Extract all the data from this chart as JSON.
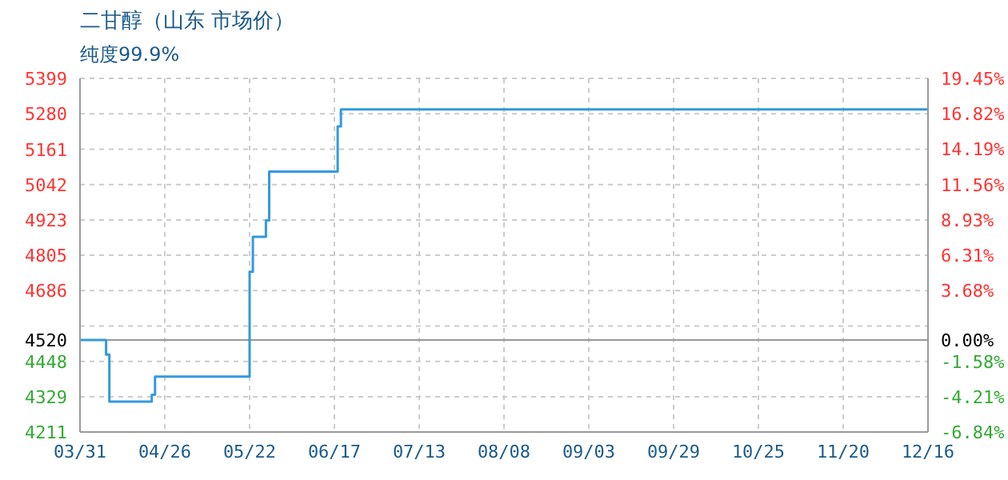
{
  "chart_data": {
    "type": "step",
    "title": "二甘醇（山东 市场价）",
    "subtitle": "纯度99.9%",
    "x": [
      "--03-31",
      "--04-08",
      "--04-09",
      "--04-22",
      "--04-23",
      "--05-22",
      "--05-23",
      "--05-27",
      "--05-28",
      "--06-18",
      "--06-19",
      "--12-16"
    ],
    "series": [
      {
        "color": "#3399dd",
        "values": [
          4520,
          4471,
          4313,
          4336,
          4397,
          4749,
          4867,
          4922,
          5086,
          5238,
          5295,
          5295
        ]
      }
    ],
    "xlim": [
      "--03-31",
      "--12-16"
    ],
    "xticks": [
      {
        "value": "--03-31",
        "label": "03/31"
      },
      {
        "value": "--04-26",
        "label": "04/26"
      },
      {
        "value": "--05-22",
        "label": "05/22"
      },
      {
        "value": "--06-17",
        "label": "06/17"
      },
      {
        "value": "--07-13",
        "label": "07/13"
      },
      {
        "value": "--08-08",
        "label": "08/08"
      },
      {
        "value": "--09-03",
        "label": "09/03"
      },
      {
        "value": "--09-29",
        "label": "09/29"
      },
      {
        "value": "--10-25",
        "label": "10/25"
      },
      {
        "value": "--11-20",
        "label": "11/20"
      },
      {
        "value": "--12-16",
        "label": "12/16"
      }
    ],
    "ylim": [
      4211,
      5399
    ],
    "yticks": [
      4211,
      4329,
      4448,
      4520,
      {
        "value": 4567,
        "label": null
      },
      4686,
      4805,
      4923,
      5042,
      5161,
      5280,
      5399
    ],
    "y2lim": [
      -6.84,
      19.45
    ],
    "y2ticks": [
      {
        "value": -6.84,
        "label": "-6.84%"
      },
      {
        "value": -4.21,
        "label": "-4.21%"
      },
      {
        "value": -1.58,
        "label": "-1.58%"
      },
      {
        "value": 0,
        "label": "0.00%"
      },
      {
        "value": 3.68,
        "label": "3.68%"
      },
      {
        "value": 6.31,
        "label": "6.31%"
      },
      {
        "value": 8.93,
        "label": "8.93%"
      },
      {
        "value": 11.56,
        "label": "11.56%"
      },
      {
        "value": 14.19,
        "label": "14.19%"
      },
      {
        "value": 16.82,
        "label": "16.82%"
      },
      {
        "value": 19.45,
        "label": "19.45%"
      }
    ],
    "ref_lines": [
      {
        "axis": "y",
        "value": 4520,
        "color": "#999999",
        "line_style": "solid"
      }
    ],
    "grid": true,
    "marker": "none",
    "line_style": "solid"
  }
}
